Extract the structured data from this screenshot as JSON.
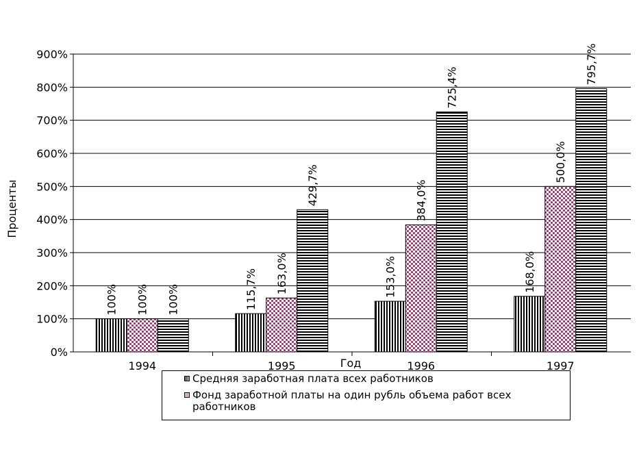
{
  "chart_data": {
    "type": "bar",
    "xlabel": "Год",
    "ylabel": "Проценты",
    "categories": [
      "1994",
      "1995",
      "1996",
      "1997"
    ],
    "ylim": [
      0,
      900
    ],
    "yticks": [
      0,
      100,
      200,
      300,
      400,
      500,
      600,
      700,
      800,
      900
    ],
    "ytick_labels": [
      "0%",
      "100%",
      "200%",
      "300%",
      "400%",
      "500%",
      "600%",
      "700%",
      "800%",
      "900%"
    ],
    "grid": true,
    "legend_position": "bottom-center",
    "series": [
      {
        "name": "Средняя заработная плата всех работников",
        "values": [
          100,
          115.7,
          153,
          168
        ],
        "labels": [
          "100%",
          "115,7%",
          "153,0%",
          "168,0%"
        ],
        "pattern": "vertical-stripes",
        "color": "#000000"
      },
      {
        "name": "Фонд заработной платы на один рубль объема работ всех работников",
        "values": [
          100,
          163,
          384,
          500
        ],
        "labels": [
          "100%",
          "163,0%",
          "384,0%",
          "500,0%"
        ],
        "pattern": "dotted-grid",
        "color": "#99336b"
      },
      {
        "name": "",
        "values": [
          100,
          429.7,
          725.4,
          795.7
        ],
        "labels": [
          "100%",
          "429,7%",
          "725,4%",
          "795,7%"
        ],
        "pattern": "horizontal-stripes",
        "color": "#000000"
      }
    ]
  }
}
